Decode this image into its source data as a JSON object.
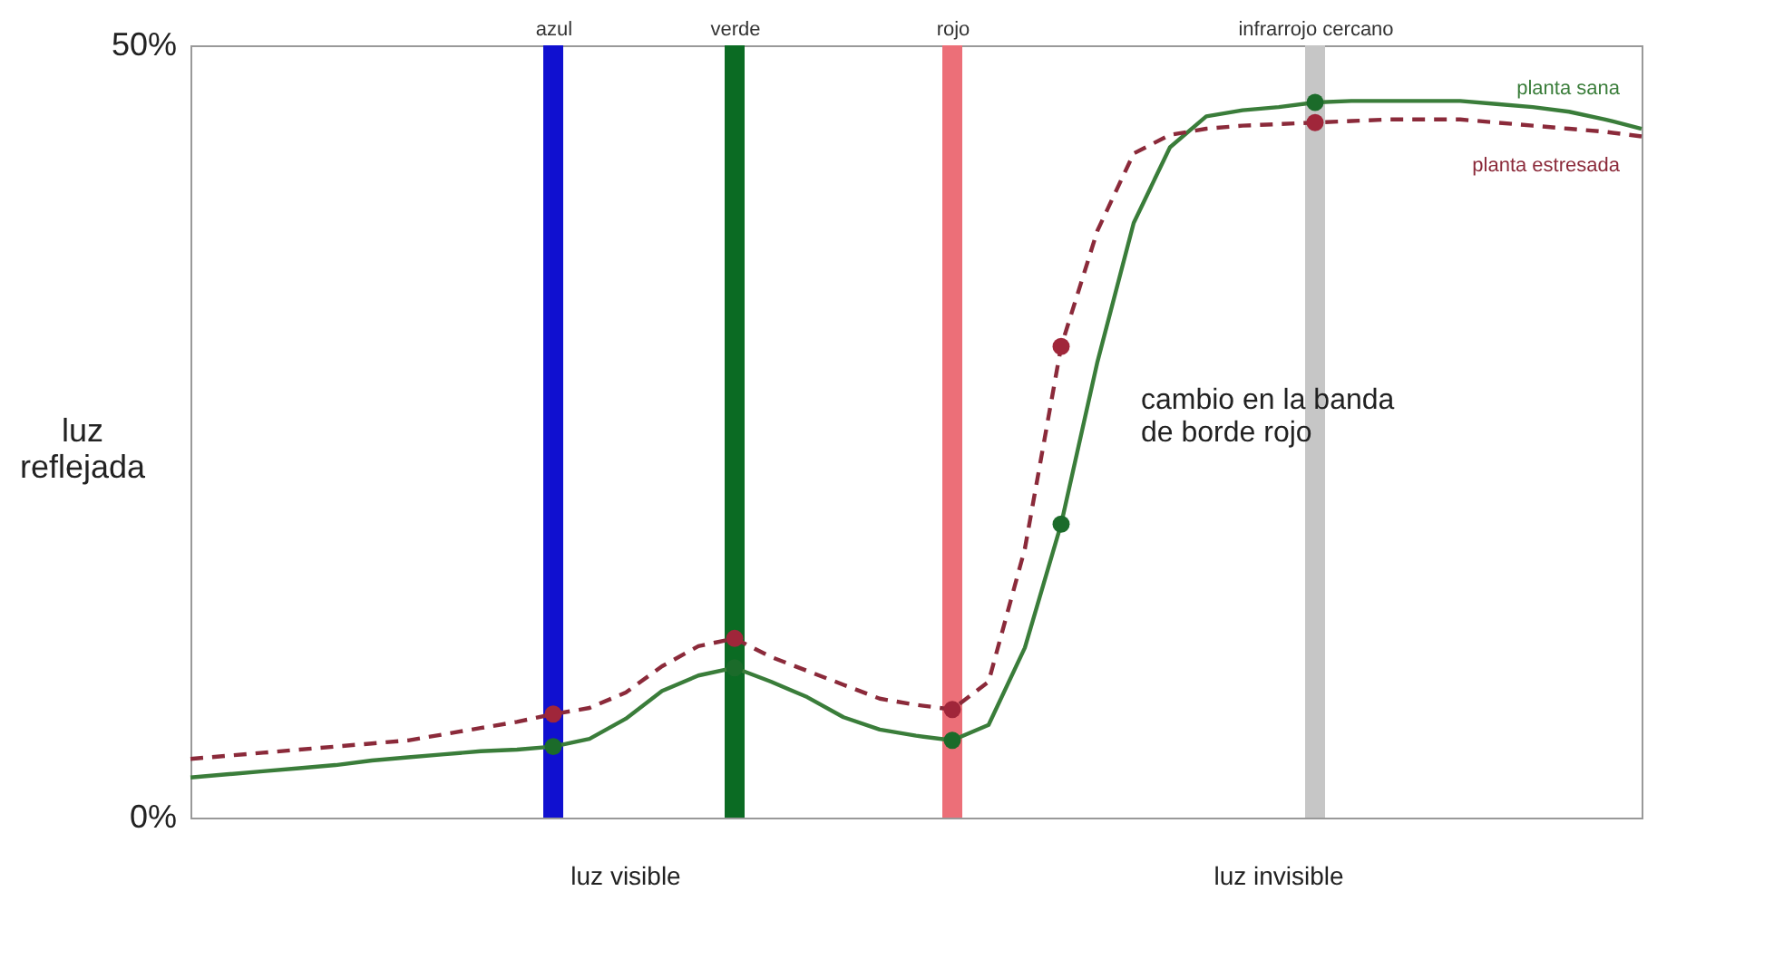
{
  "chart_data": {
    "type": "line",
    "ylabel": "luz reflejada",
    "ylim": [
      0,
      50
    ],
    "yticks": [
      {
        "value": 0,
        "label": "0%"
      },
      {
        "value": 50,
        "label": "50%"
      }
    ],
    "grid": false,
    "legend": false,
    "categories": [
      null,
      null,
      null,
      null,
      null,
      null,
      null,
      null,
      null,
      null,
      "azul",
      null,
      null,
      null,
      null,
      "verde",
      null,
      null,
      null,
      null,
      null,
      "rojo",
      null,
      null,
      null,
      null,
      null,
      null,
      null,
      null,
      null,
      "infrarrojo cercano",
      null,
      null,
      null,
      null,
      null,
      null,
      null,
      null,
      null
    ],
    "series": [
      {
        "name": "planta sana",
        "color": "#3a7d3a",
        "line_style": "solid",
        "values": [
          2.6,
          2.8,
          3.0,
          3.2,
          3.4,
          3.7,
          3.9,
          4.1,
          4.3,
          4.4,
          4.6,
          5.1,
          6.4,
          8.2,
          9.2,
          9.7,
          8.8,
          7.8,
          6.5,
          5.7,
          5.3,
          5.0,
          6.0,
          11.0,
          19.0,
          29.5,
          38.5,
          43.4,
          45.4,
          45.8,
          46.0,
          46.3,
          46.4,
          46.4,
          46.4,
          46.4,
          46.2,
          46.0,
          45.7,
          45.2,
          44.6
        ]
      },
      {
        "name": "planta estresada",
        "color": "#8b2a3a",
        "line_style": "dashed",
        "values": [
          3.8,
          4.0,
          4.2,
          4.4,
          4.6,
          4.8,
          5.0,
          5.4,
          5.8,
          6.2,
          6.7,
          7.1,
          8.1,
          9.8,
          11.1,
          11.6,
          10.4,
          9.5,
          8.6,
          7.7,
          7.3,
          7.0,
          8.8,
          17.4,
          30.5,
          38.0,
          43.0,
          44.2,
          44.6,
          44.8,
          44.9,
          45.0,
          45.1,
          45.2,
          45.2,
          45.2,
          45.0,
          44.8,
          44.6,
          44.4,
          44.1
        ]
      },
      {
        "type": "scatter",
        "color": "#1b6b2a",
        "marker": "circle",
        "values": [
          null,
          null,
          null,
          null,
          null,
          null,
          null,
          null,
          null,
          null,
          4.6,
          null,
          null,
          null,
          null,
          9.7,
          null,
          null,
          null,
          null,
          null,
          5.0,
          null,
          null,
          19.0,
          null,
          null,
          null,
          null,
          null,
          null,
          46.3,
          null,
          null,
          null,
          null,
          null,
          null,
          null,
          null,
          null
        ]
      },
      {
        "type": "scatter",
        "color": "#a0263a",
        "marker": "circle",
        "values": [
          null,
          null,
          null,
          null,
          null,
          null,
          null,
          null,
          null,
          null,
          6.7,
          null,
          null,
          null,
          null,
          11.6,
          null,
          null,
          null,
          null,
          null,
          7.0,
          null,
          null,
          30.5,
          null,
          null,
          null,
          null,
          null,
          null,
          45.0,
          null,
          null,
          null,
          null,
          null,
          null,
          null,
          null,
          null
        ]
      }
    ],
    "bands": [
      {
        "axis": "x",
        "from": "azul",
        "to": "azul",
        "color": "#1010d0"
      },
      {
        "axis": "x",
        "from": "verde",
        "to": "verde",
        "color": "#0b6b23"
      },
      {
        "axis": "x",
        "from": "rojo",
        "to": "rojo",
        "color": "#ec6f78"
      },
      {
        "axis": "x",
        "from": "infrarrojo cercano",
        "to": "infrarrojo cercano",
        "color": "#c6c6c6"
      }
    ],
    "annotations": [
      "cambio en la banda de borde rojo",
      "luz visible",
      "luz invisible"
    ]
  }
}
